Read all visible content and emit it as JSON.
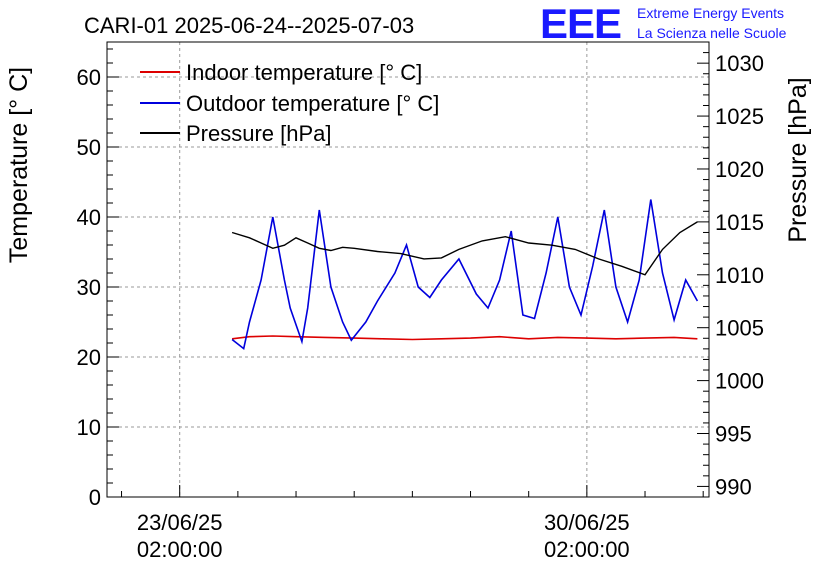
{
  "header": {
    "title": "CARI-01 2025-06-24--2025-07-03",
    "logo_text": "EEE",
    "project_line1": "Extreme Energy Events",
    "project_line2": "La Scienza nelle Scuole"
  },
  "colors": {
    "indoor": "#dd0000",
    "outdoor": "#0000dd",
    "pressure": "#000000",
    "logo": "#1a1aff"
  },
  "chart_data": {
    "type": "line",
    "title": "CARI-01 2025-06-24--2025-07-03",
    "xlabel": "",
    "ylabel": "Temperature [° C]",
    "y2label": "Pressure [hPa]",
    "x_unit": "days since 23/06/25 02:00:00",
    "xlim": [
      -1.25,
      9.1
    ],
    "ylim": [
      0,
      65
    ],
    "y2lim": [
      989,
      1032
    ],
    "grid": true,
    "legend_position": "top-left",
    "x_ticks": [
      {
        "x": 0,
        "line1": "23/06/25",
        "line2": "02:00:00"
      },
      {
        "x": 7,
        "line1": "30/06/25",
        "line2": "02:00:00"
      }
    ],
    "y_ticks": [
      "0",
      "10",
      "20",
      "30",
      "40",
      "50",
      "60"
    ],
    "y2_ticks": [
      "990",
      "995",
      "1000",
      "1005",
      "1010",
      "1015",
      "1020",
      "1025",
      "1030"
    ],
    "series": [
      {
        "name": "Indoor temperature [° C]",
        "axis": "left",
        "x": [
          0.9,
          1.2,
          1.6,
          2.0,
          2.5,
          3.0,
          3.5,
          4.0,
          4.5,
          5.0,
          5.5,
          6.0,
          6.5,
          7.0,
          7.5,
          8.0,
          8.5,
          8.9
        ],
        "y": [
          22.6,
          22.9,
          23.0,
          22.9,
          22.8,
          22.7,
          22.6,
          22.5,
          22.6,
          22.7,
          22.9,
          22.6,
          22.8,
          22.7,
          22.6,
          22.7,
          22.8,
          22.6
        ]
      },
      {
        "name": "Outdoor temperature [° C]",
        "axis": "left",
        "x": [
          0.9,
          1.1,
          1.2,
          1.4,
          1.6,
          1.8,
          1.9,
          2.1,
          2.2,
          2.4,
          2.6,
          2.8,
          2.95,
          3.2,
          3.4,
          3.7,
          3.9,
          4.1,
          4.3,
          4.5,
          4.8,
          5.1,
          5.3,
          5.5,
          5.7,
          5.9,
          6.1,
          6.3,
          6.5,
          6.7,
          6.9,
          7.1,
          7.3,
          7.5,
          7.7,
          7.9,
          8.1,
          8.3,
          8.5,
          8.7,
          8.9
        ],
        "y": [
          22.5,
          21.2,
          25,
          31,
          40,
          31,
          27,
          22.2,
          27,
          41,
          30,
          25,
          22.4,
          25,
          28,
          32,
          36,
          30,
          28.5,
          31,
          34,
          29,
          27,
          31,
          38,
          26,
          25.5,
          32,
          40,
          30,
          26,
          33,
          41,
          30,
          25,
          31,
          42.5,
          32,
          25.3,
          31,
          28
        ]
      },
      {
        "name": "Pressure [hPa]",
        "axis": "right",
        "x": [
          0.9,
          1.2,
          1.4,
          1.6,
          1.8,
          2.0,
          2.2,
          2.4,
          2.6,
          2.8,
          3.0,
          3.4,
          3.8,
          4.2,
          4.5,
          4.8,
          5.2,
          5.6,
          6.0,
          6.4,
          6.8,
          7.2,
          7.6,
          8.0,
          8.3,
          8.6,
          8.9
        ],
        "y": [
          1014,
          1013.5,
          1013,
          1012.5,
          1012.8,
          1013.5,
          1013,
          1012.5,
          1012.3,
          1012.6,
          1012.5,
          1012.2,
          1012,
          1011.5,
          1011.6,
          1012.4,
          1013.2,
          1013.6,
          1013,
          1012.8,
          1012.4,
          1011.5,
          1010.8,
          1010,
          1012.4,
          1014,
          1015
        ]
      }
    ]
  }
}
